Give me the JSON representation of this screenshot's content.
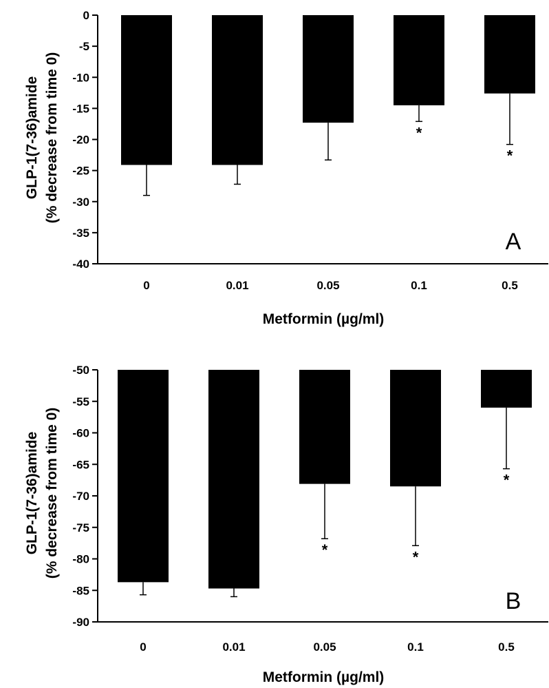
{
  "chart_data": [
    {
      "type": "bar",
      "panel_label": "A",
      "xlabel": "Metformin (µg/ml)",
      "ylabel_lines": [
        "GLP-1(7-36)amide",
        "(% decrease from time 0)"
      ],
      "categories": [
        "0",
        "0.01",
        "0.05",
        "0.1",
        "0.5"
      ],
      "values": [
        -24.1,
        -24.1,
        -17.3,
        -14.5,
        -12.6
      ],
      "error_lower": [
        -29.0,
        -27.2,
        -23.3,
        -17.1,
        -20.8
      ],
      "significant": [
        false,
        false,
        false,
        true,
        true
      ],
      "significance_marker": "*",
      "ylim": [
        -40,
        0
      ],
      "yticks": [
        0,
        -5,
        -10,
        -15,
        -20,
        -25,
        -30,
        -35,
        -40
      ],
      "grid": false,
      "bar_color": "#000000"
    },
    {
      "type": "bar",
      "panel_label": "B",
      "xlabel": "Metformin (µg/ml)",
      "ylabel_lines": [
        "GLP-1(7-36)amide",
        "(% decrease from time 0)"
      ],
      "categories": [
        "0",
        "0.01",
        "0.05",
        "0.1",
        "0.5"
      ],
      "values": [
        -83.7,
        -84.7,
        -68.1,
        -68.5,
        -56.0
      ],
      "error_lower": [
        -85.7,
        -86.0,
        -76.8,
        -77.9,
        -65.7
      ],
      "significant": [
        false,
        false,
        true,
        true,
        true
      ],
      "significance_marker": "*",
      "ylim": [
        -90,
        -50
      ],
      "yticks": [
        -50,
        -55,
        -60,
        -65,
        -70,
        -75,
        -80,
        -85,
        -90
      ],
      "grid": false,
      "bar_color": "#000000"
    }
  ]
}
